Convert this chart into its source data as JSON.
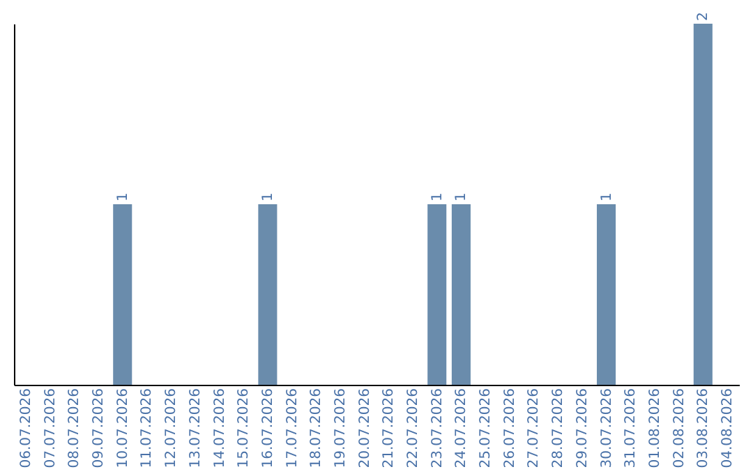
{
  "chart_data": {
    "type": "bar",
    "categories": [
      "06.07.2026",
      "07.07.2026",
      "08.07.2026",
      "09.07.2026",
      "10.07.2026",
      "11.07.2026",
      "12.07.2026",
      "13.07.2026",
      "14.07.2026",
      "15.07.2026",
      "16.07.2026",
      "17.07.2026",
      "18.07.2026",
      "19.07.2026",
      "20.07.2026",
      "21.07.2026",
      "22.07.2026",
      "23.07.2026",
      "24.07.2026",
      "25.07.2026",
      "26.07.2026",
      "27.07.2026",
      "28.07.2026",
      "29.07.2026",
      "30.07.2026",
      "31.07.2026",
      "01.08.2026",
      "02.08.2026",
      "03.08.2026",
      "04.08.2026"
    ],
    "values": [
      0,
      0,
      0,
      0,
      1,
      0,
      0,
      0,
      0,
      0,
      1,
      0,
      0,
      0,
      0,
      0,
      0,
      1,
      1,
      0,
      0,
      0,
      0,
      0,
      1,
      0,
      0,
      0,
      2,
      0
    ],
    "value_labels": [
      null,
      null,
      null,
      null,
      "1",
      null,
      null,
      null,
      null,
      null,
      "1",
      null,
      null,
      null,
      null,
      null,
      null,
      "1",
      "1",
      null,
      null,
      null,
      null,
      null,
      "1",
      null,
      null,
      null,
      "2",
      null
    ],
    "color": "#6a8cac",
    "tick_labels": "x",
    "grid": false
  }
}
